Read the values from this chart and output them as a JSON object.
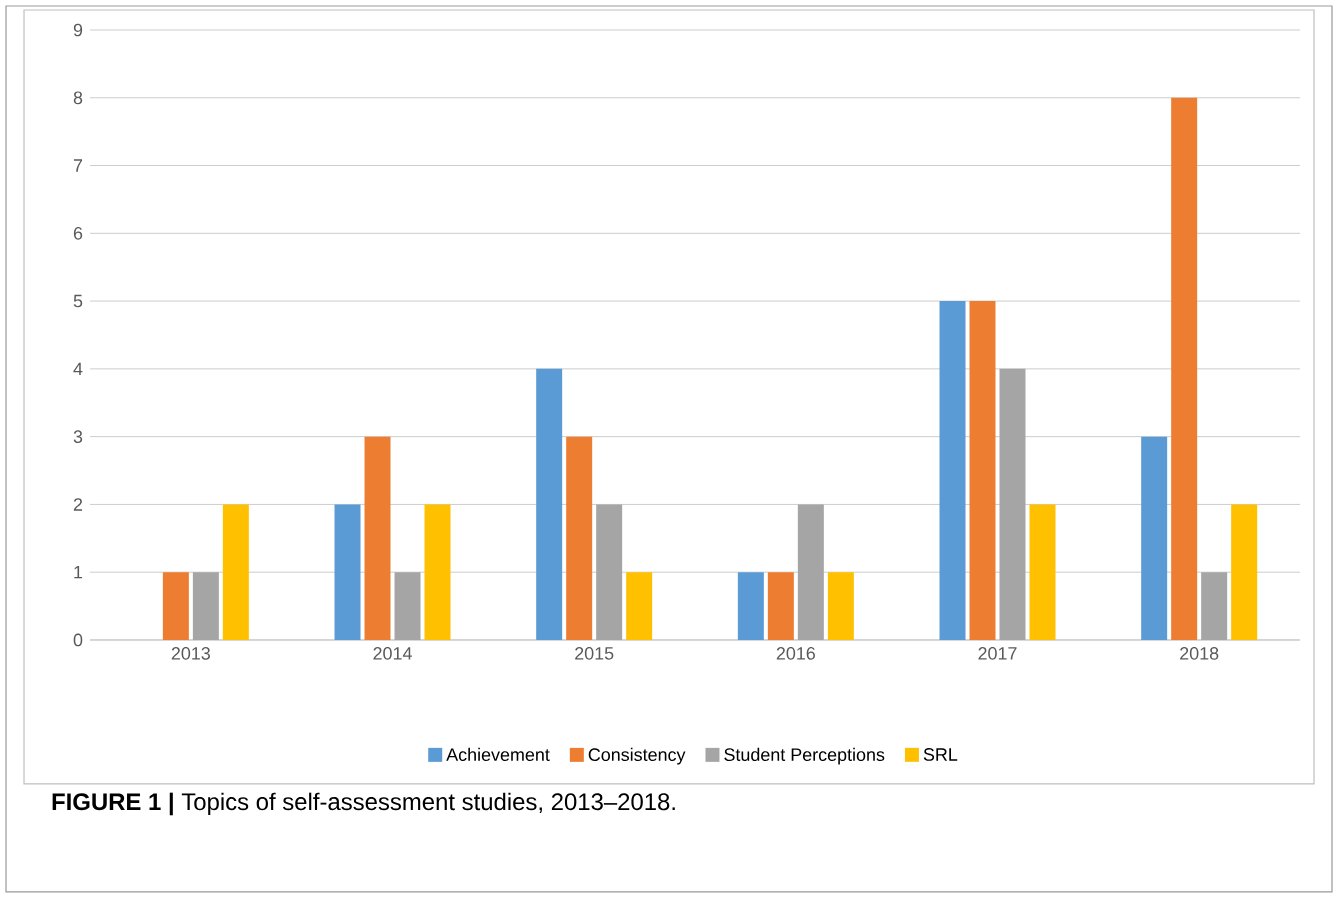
{
  "chart_data": {
    "type": "bar",
    "categories": [
      "2013",
      "2014",
      "2015",
      "2016",
      "2017",
      "2018"
    ],
    "series": [
      {
        "name": "Achievement",
        "color": "#5b9bd5",
        "values": [
          0,
          2,
          4,
          1,
          5,
          3
        ]
      },
      {
        "name": "Consistency",
        "color": "#ed7d31",
        "values": [
          1,
          3,
          3,
          1,
          5,
          8
        ]
      },
      {
        "name": "Student Perceptions",
        "color": "#a5a5a5",
        "values": [
          1,
          1,
          2,
          2,
          4,
          1
        ]
      },
      {
        "name": "SRL",
        "color": "#ffc000",
        "values": [
          2,
          2,
          1,
          1,
          2,
          2
        ]
      }
    ],
    "ylim": [
      0,
      9
    ],
    "yticks": [
      0,
      1,
      2,
      3,
      4,
      5,
      6,
      7,
      8,
      9
    ],
    "grid": "y",
    "legend": "bottom",
    "annotations": [
      "**FIGURE 1 |** Topics of self-assessment studies, 2013–2018."
    ]
  }
}
